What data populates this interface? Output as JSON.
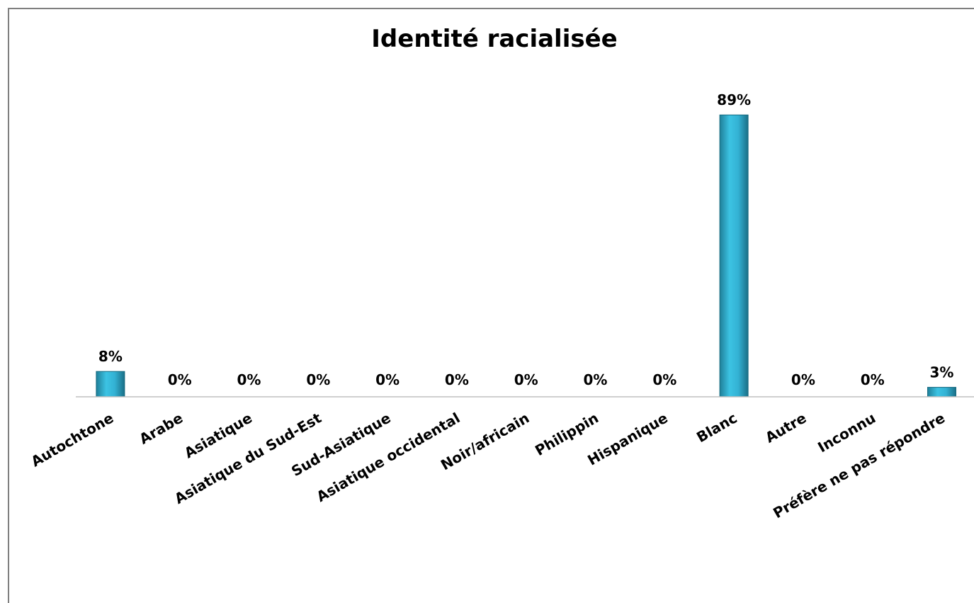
{
  "chart_data": {
    "type": "bar",
    "title": "Identité racialisée",
    "xlabel": "",
    "ylabel": "",
    "categories": [
      "Autochtone",
      "Arabe",
      "Asiatique",
      "Asiatique du Sud-Est",
      "Sud-Asiatique",
      "Asiatique occidental",
      "Noir/africain",
      "Philippin",
      "Hispanique",
      "Blanc",
      "Autre",
      "Inconnu",
      "Préfère ne pas répondre"
    ],
    "values": [
      8,
      0,
      0,
      0,
      0,
      0,
      0,
      0,
      0,
      89,
      0,
      0,
      3
    ],
    "data_labels": [
      "8%",
      "0%",
      "0%",
      "0%",
      "0%",
      "0%",
      "0%",
      "0%",
      "0%",
      "89%",
      "0%",
      "0%",
      "3%"
    ],
    "ylim": [
      0,
      100
    ],
    "grid": false,
    "legend": "none",
    "bar_color": "#2ea8c8",
    "axis_color": "#bfbfbf"
  }
}
